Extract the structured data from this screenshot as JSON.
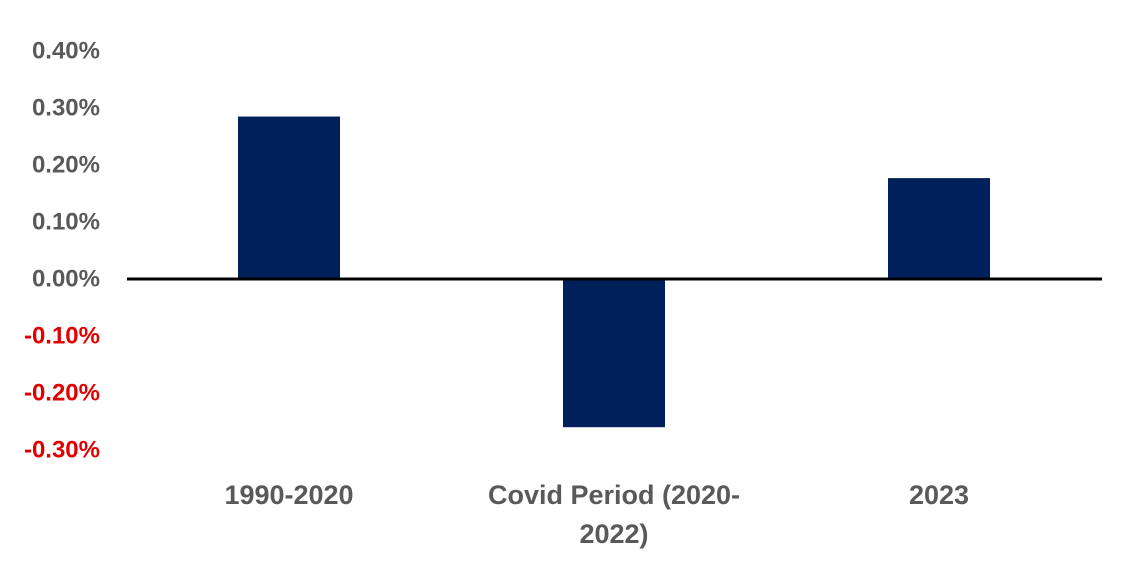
{
  "chart_data": {
    "type": "bar",
    "title": "",
    "xlabel": "",
    "ylabel": "",
    "categories": [
      [
        "1990-2020"
      ],
      [
        "Covid Period (2020-",
        "2022)"
      ],
      [
        "2023"
      ]
    ],
    "values": [
      0.285,
      -0.26,
      0.177
    ],
    "y_ticks": [
      {
        "value": 0.4,
        "label": "0.40%"
      },
      {
        "value": 0.3,
        "label": "0.30%"
      },
      {
        "value": 0.2,
        "label": "0.20%"
      },
      {
        "value": 0.1,
        "label": "0.10%"
      },
      {
        "value": 0.0,
        "label": "0.00%"
      },
      {
        "value": -0.1,
        "label": "-0.10%"
      },
      {
        "value": -0.2,
        "label": "-0.20%"
      },
      {
        "value": -0.3,
        "label": "-0.30%"
      }
    ],
    "ylim": [
      -0.3,
      0.4
    ],
    "unit": "%",
    "grid": false,
    "legend": "none",
    "colors": {
      "bar": "#00205B",
      "positive_tick": "#595959",
      "negative_tick": "#E00000",
      "category_label": "#595959",
      "zero_line": "#000000"
    }
  }
}
